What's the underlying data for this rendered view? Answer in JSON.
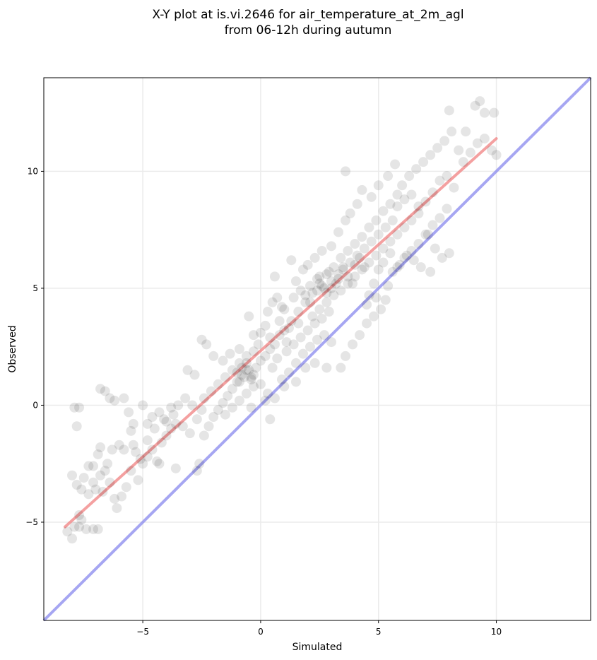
{
  "chart_data": {
    "type": "scatter",
    "title": "X-Y plot at is.vi.2646 for air_temperature_at_2m_agl",
    "subtitle": "from 06-12h during autumn",
    "xlabel": "Simulated",
    "ylabel": "Observed",
    "xlim": [
      -9.2,
      14.0
    ],
    "ylim": [
      -9.2,
      14.0
    ],
    "xticks": [
      -5,
      0,
      5,
      10
    ],
    "yticks": [
      -5,
      0,
      5,
      10
    ],
    "grid": true,
    "colors": {
      "points": "#000000",
      "fit_line": "#f08080",
      "identity_line": "#8888ee",
      "grid": "#ebebeb"
    },
    "fit_line": {
      "x": [
        -8.3,
        10.0
      ],
      "y": [
        -5.2,
        11.4
      ]
    },
    "identity_line": {
      "x": [
        -9.2,
        14.0
      ],
      "y": [
        -9.2,
        14.0
      ]
    },
    "points": [
      [
        -8.2,
        -5.4
      ],
      [
        -8.0,
        -5.7
      ],
      [
        -7.9,
        -5.2
      ],
      [
        -7.7,
        -5.2
      ],
      [
        -7.4,
        -5.3
      ],
      [
        -7.1,
        -5.3
      ],
      [
        -6.9,
        -5.3
      ],
      [
        -7.7,
        -4.7
      ],
      [
        -8.0,
        -3.0
      ],
      [
        -7.8,
        -3.4
      ],
      [
        -7.6,
        -3.6
      ],
      [
        -7.5,
        -3.1
      ],
      [
        -7.3,
        -2.6
      ],
      [
        -7.1,
        -3.3
      ],
      [
        -7.0,
        -3.6
      ],
      [
        -6.8,
        -3.0
      ],
      [
        -6.6,
        -2.8
      ],
      [
        -6.4,
        -3.3
      ],
      [
        -6.2,
        -4.0
      ],
      [
        -6.1,
        -4.4
      ],
      [
        -5.9,
        -3.9
      ],
      [
        -5.7,
        -3.5
      ],
      [
        -5.5,
        -2.8
      ],
      [
        -5.2,
        -3.2
      ],
      [
        -5.0,
        -2.5
      ],
      [
        -4.8,
        -2.2
      ],
      [
        -4.6,
        -1.9
      ],
      [
        -4.4,
        -2.4
      ],
      [
        -4.2,
        -1.6
      ],
      [
        -4.0,
        -1.3
      ],
      [
        -3.8,
        -1.0
      ],
      [
        -3.6,
        -0.8
      ],
      [
        -7.9,
        -0.1
      ],
      [
        -7.7,
        -0.1
      ],
      [
        -7.8,
        -0.9
      ],
      [
        -6.8,
        0.7
      ],
      [
        -6.6,
        0.6
      ],
      [
        -6.4,
        0.3
      ],
      [
        -6.2,
        0.2
      ],
      [
        -5.8,
        0.3
      ],
      [
        -5.6,
        -0.3
      ],
      [
        -5.4,
        -0.8
      ],
      [
        -5.0,
        0.0
      ],
      [
        -4.8,
        -0.8
      ],
      [
        -4.6,
        -0.5
      ],
      [
        -4.3,
        -0.3
      ],
      [
        -4.0,
        -0.7
      ],
      [
        -3.8,
        -0.1
      ],
      [
        -3.5,
        0.0
      ],
      [
        -3.2,
        0.3
      ],
      [
        -6.8,
        -1.8
      ],
      [
        -7.1,
        -2.6
      ],
      [
        -6.3,
        -1.9
      ],
      [
        -5.8,
        -1.9
      ],
      [
        -5.4,
        -1.7
      ],
      [
        -5.1,
        -2.3
      ],
      [
        -4.8,
        -1.5
      ],
      [
        -4.3,
        -2.5
      ],
      [
        -3.6,
        -2.7
      ],
      [
        -2.7,
        -2.8
      ],
      [
        -2.6,
        -2.5
      ],
      [
        -2.4,
        -1.3
      ],
      [
        -2.2,
        -0.9
      ],
      [
        -2.0,
        -0.5
      ],
      [
        -1.8,
        -0.2
      ],
      [
        -1.6,
        0.1
      ],
      [
        -1.4,
        0.4
      ],
      [
        -1.2,
        0.7
      ],
      [
        -1.0,
        1.0
      ],
      [
        -0.8,
        1.3
      ],
      [
        -0.6,
        1.5
      ],
      [
        -0.4,
        1.2
      ],
      [
        -0.2,
        1.6
      ],
      [
        0.0,
        1.9
      ],
      [
        0.2,
        2.1
      ],
      [
        0.4,
        2.4
      ],
      [
        0.6,
        2.6
      ],
      [
        0.8,
        3.0
      ],
      [
        1.0,
        3.2
      ],
      [
        1.2,
        3.3
      ],
      [
        -3.1,
        1.5
      ],
      [
        -2.8,
        1.3
      ],
      [
        -2.5,
        2.8
      ],
      [
        -2.3,
        2.6
      ],
      [
        -2.0,
        2.1
      ],
      [
        -1.6,
        1.9
      ],
      [
        -1.3,
        2.2
      ],
      [
        -0.9,
        2.4
      ],
      [
        -0.5,
        3.8
      ],
      [
        -0.3,
        3.0
      ],
      [
        0.0,
        3.1
      ],
      [
        0.3,
        4.0
      ],
      [
        0.5,
        4.4
      ],
      [
        0.7,
        4.6
      ],
      [
        0.9,
        4.2
      ],
      [
        0.6,
        5.5
      ],
      [
        -1.5,
        -0.4
      ],
      [
        -1.2,
        -0.1
      ],
      [
        -0.9,
        0.2
      ],
      [
        -0.6,
        0.5
      ],
      [
        -0.3,
        0.8
      ],
      [
        0.0,
        0.9
      ],
      [
        0.3,
        0.5
      ],
      [
        0.6,
        0.3
      ],
      [
        0.9,
        1.1
      ],
      [
        1.2,
        1.4
      ],
      [
        1.5,
        1.8
      ],
      [
        1.8,
        2.2
      ],
      [
        2.1,
        2.5
      ],
      [
        2.4,
        2.8
      ],
      [
        2.7,
        3.0
      ],
      [
        3.0,
        2.7
      ],
      [
        0.4,
        -0.6
      ],
      [
        -0.4,
        -0.1
      ],
      [
        0.2,
        0.2
      ],
      [
        1.0,
        0.8
      ],
      [
        1.5,
        1.0
      ],
      [
        1.9,
        1.6
      ],
      [
        2.3,
        1.8
      ],
      [
        2.8,
        1.6
      ],
      [
        3.4,
        1.6
      ],
      [
        3.6,
        2.1
      ],
      [
        3.9,
        2.6
      ],
      [
        4.2,
        3.0
      ],
      [
        4.5,
        3.5
      ],
      [
        4.8,
        3.8
      ],
      [
        5.1,
        4.1
      ],
      [
        5.3,
        4.5
      ],
      [
        1.3,
        3.6
      ],
      [
        1.6,
        4.0
      ],
      [
        1.9,
        4.4
      ],
      [
        2.2,
        4.8
      ],
      [
        2.5,
        5.2
      ],
      [
        2.8,
        5.6
      ],
      [
        3.1,
        5.9
      ],
      [
        3.4,
        6.3
      ],
      [
        3.7,
        6.6
      ],
      [
        4.0,
        6.9
      ],
      [
        4.3,
        7.2
      ],
      [
        4.6,
        7.6
      ],
      [
        4.9,
        7.9
      ],
      [
        5.2,
        8.3
      ],
      [
        5.5,
        8.6
      ],
      [
        5.8,
        9.0
      ],
      [
        1.5,
        5.3
      ],
      [
        1.8,
        5.8
      ],
      [
        2.0,
        6.0
      ],
      [
        2.3,
        6.3
      ],
      [
        2.6,
        6.6
      ],
      [
        3.0,
        6.8
      ],
      [
        3.3,
        7.4
      ],
      [
        3.6,
        7.9
      ],
      [
        3.8,
        8.2
      ],
      [
        4.1,
        8.6
      ],
      [
        3.6,
        10.0
      ],
      [
        4.3,
        9.2
      ],
      [
        4.7,
        8.9
      ],
      [
        5.0,
        9.4
      ],
      [
        5.4,
        9.8
      ],
      [
        5.7,
        10.3
      ],
      [
        1.0,
        4.1
      ],
      [
        1.4,
        4.6
      ],
      [
        1.7,
        4.9
      ],
      [
        2.1,
        5.1
      ],
      [
        2.4,
        5.4
      ],
      [
        2.7,
        5.0
      ],
      [
        3.0,
        5.3
      ],
      [
        3.3,
        5.6
      ],
      [
        3.5,
        5.9
      ],
      [
        3.8,
        6.1
      ],
      [
        4.1,
        6.4
      ],
      [
        4.4,
        6.7
      ],
      [
        4.7,
        7.0
      ],
      [
        5.0,
        7.3
      ],
      [
        5.3,
        7.6
      ],
      [
        5.6,
        7.9
      ],
      [
        2.2,
        3.8
      ],
      [
        2.5,
        4.1
      ],
      [
        2.8,
        4.4
      ],
      [
        3.1,
        4.7
      ],
      [
        3.4,
        4.9
      ],
      [
        3.7,
        5.2
      ],
      [
        4.0,
        5.5
      ],
      [
        4.3,
        5.8
      ],
      [
        4.6,
        6.1
      ],
      [
        4.9,
        6.4
      ],
      [
        5.2,
        6.7
      ],
      [
        5.5,
        7.0
      ],
      [
        5.8,
        7.3
      ],
      [
        6.1,
        7.6
      ],
      [
        6.4,
        7.9
      ],
      [
        6.7,
        8.2
      ],
      [
        5.8,
        5.9
      ],
      [
        6.1,
        6.3
      ],
      [
        6.4,
        6.6
      ],
      [
        6.7,
        6.9
      ],
      [
        7.0,
        7.3
      ],
      [
        7.3,
        7.7
      ],
      [
        7.6,
        8.0
      ],
      [
        7.9,
        8.4
      ],
      [
        6.0,
        9.4
      ],
      [
        6.3,
        9.8
      ],
      [
        6.6,
        10.1
      ],
      [
        6.9,
        10.4
      ],
      [
        7.2,
        10.7
      ],
      [
        7.5,
        11.0
      ],
      [
        7.8,
        11.3
      ],
      [
        8.1,
        11.7
      ],
      [
        8.4,
        10.9
      ],
      [
        8.6,
        10.4
      ],
      [
        8.9,
        10.8
      ],
      [
        9.2,
        11.2
      ],
      [
        9.5,
        11.4
      ],
      [
        9.8,
        10.9
      ],
      [
        10.0,
        10.7
      ],
      [
        8.0,
        12.6
      ],
      [
        9.1,
        12.8
      ],
      [
        9.3,
        13.0
      ],
      [
        9.5,
        12.5
      ],
      [
        9.9,
        12.5
      ],
      [
        8.7,
        11.7
      ],
      [
        8.2,
        9.3
      ],
      [
        7.9,
        9.8
      ],
      [
        7.6,
        9.6
      ],
      [
        7.3,
        9.1
      ],
      [
        7.0,
        8.7
      ],
      [
        6.7,
        8.5
      ],
      [
        6.4,
        9.0
      ],
      [
        6.1,
        8.8
      ],
      [
        5.8,
        8.5
      ],
      [
        7.1,
        7.3
      ],
      [
        7.4,
        6.7
      ],
      [
        7.7,
        6.3
      ],
      [
        8.0,
        6.5
      ],
      [
        7.2,
        5.7
      ],
      [
        6.8,
        5.9
      ],
      [
        6.5,
        6.2
      ],
      [
        6.2,
        6.4
      ],
      [
        5.9,
        6.0
      ],
      [
        5.6,
        5.7
      ],
      [
        0.7,
        2.0
      ],
      [
        1.1,
        2.3
      ],
      [
        1.4,
        2.6
      ],
      [
        1.7,
        2.9
      ],
      [
        2.0,
        3.2
      ],
      [
        2.3,
        3.5
      ],
      [
        2.6,
        3.7
      ],
      [
        2.9,
        4.0
      ],
      [
        -2.4,
        0.3
      ],
      [
        -2.1,
        0.6
      ],
      [
        -1.8,
        0.9
      ],
      [
        -1.5,
        1.2
      ],
      [
        -1.2,
        1.5
      ],
      [
        -0.9,
        1.8
      ],
      [
        -0.6,
        2.1
      ],
      [
        -0.3,
        2.3
      ],
      [
        -1.0,
        1.4
      ],
      [
        -0.8,
        1.6
      ],
      [
        -0.7,
        1.2
      ],
      [
        -0.5,
        1.5
      ],
      [
        -0.3,
        1.3
      ],
      [
        -0.6,
        1.8
      ],
      [
        -0.9,
        1.0
      ],
      [
        -0.4,
        1.1
      ],
      [
        2.4,
        4.9
      ],
      [
        2.6,
        5.1
      ],
      [
        2.8,
        4.8
      ],
      [
        3.0,
        5.0
      ],
      [
        3.2,
        5.2
      ],
      [
        2.5,
        5.5
      ],
      [
        2.9,
        5.7
      ],
      [
        3.3,
        5.4
      ],
      [
        1.9,
        4.7
      ],
      [
        2.1,
        4.4
      ],
      [
        3.5,
        5.8
      ],
      [
        3.7,
        5.5
      ],
      [
        4.0,
        6.0
      ],
      [
        4.2,
        6.3
      ],
      [
        3.9,
        5.2
      ],
      [
        4.4,
        5.9
      ],
      [
        -4.5,
        -1.0
      ],
      [
        -4.1,
        -0.6
      ],
      [
        -3.7,
        -0.4
      ],
      [
        -3.3,
        -0.9
      ],
      [
        -3.0,
        -1.2
      ],
      [
        -2.7,
        -0.6
      ],
      [
        -2.9,
        0.0
      ],
      [
        -2.5,
        -0.2
      ],
      [
        -6.0,
        -1.7
      ],
      [
        -5.5,
        -1.1
      ],
      [
        -5.3,
        -2.0
      ],
      [
        -6.5,
        -2.5
      ],
      [
        -6.9,
        -2.1
      ],
      [
        -7.3,
        -3.8
      ],
      [
        -7.6,
        -4.9
      ],
      [
        -6.7,
        -3.7
      ],
      [
        1.3,
        6.2
      ],
      [
        1.6,
        3.5
      ],
      [
        0.4,
        2.9
      ],
      [
        0.8,
        3.6
      ],
      [
        1.1,
        2.7
      ],
      [
        -0.1,
        2.6
      ],
      [
        0.2,
        3.4
      ],
      [
        0.5,
        1.6
      ],
      [
        4.5,
        4.3
      ],
      [
        4.8,
        5.2
      ],
      [
        5.0,
        5.8
      ],
      [
        5.2,
        6.1
      ],
      [
        5.4,
        5.1
      ],
      [
        4.6,
        4.7
      ],
      [
        4.9,
        4.6
      ],
      [
        5.5,
        6.5
      ]
    ]
  }
}
